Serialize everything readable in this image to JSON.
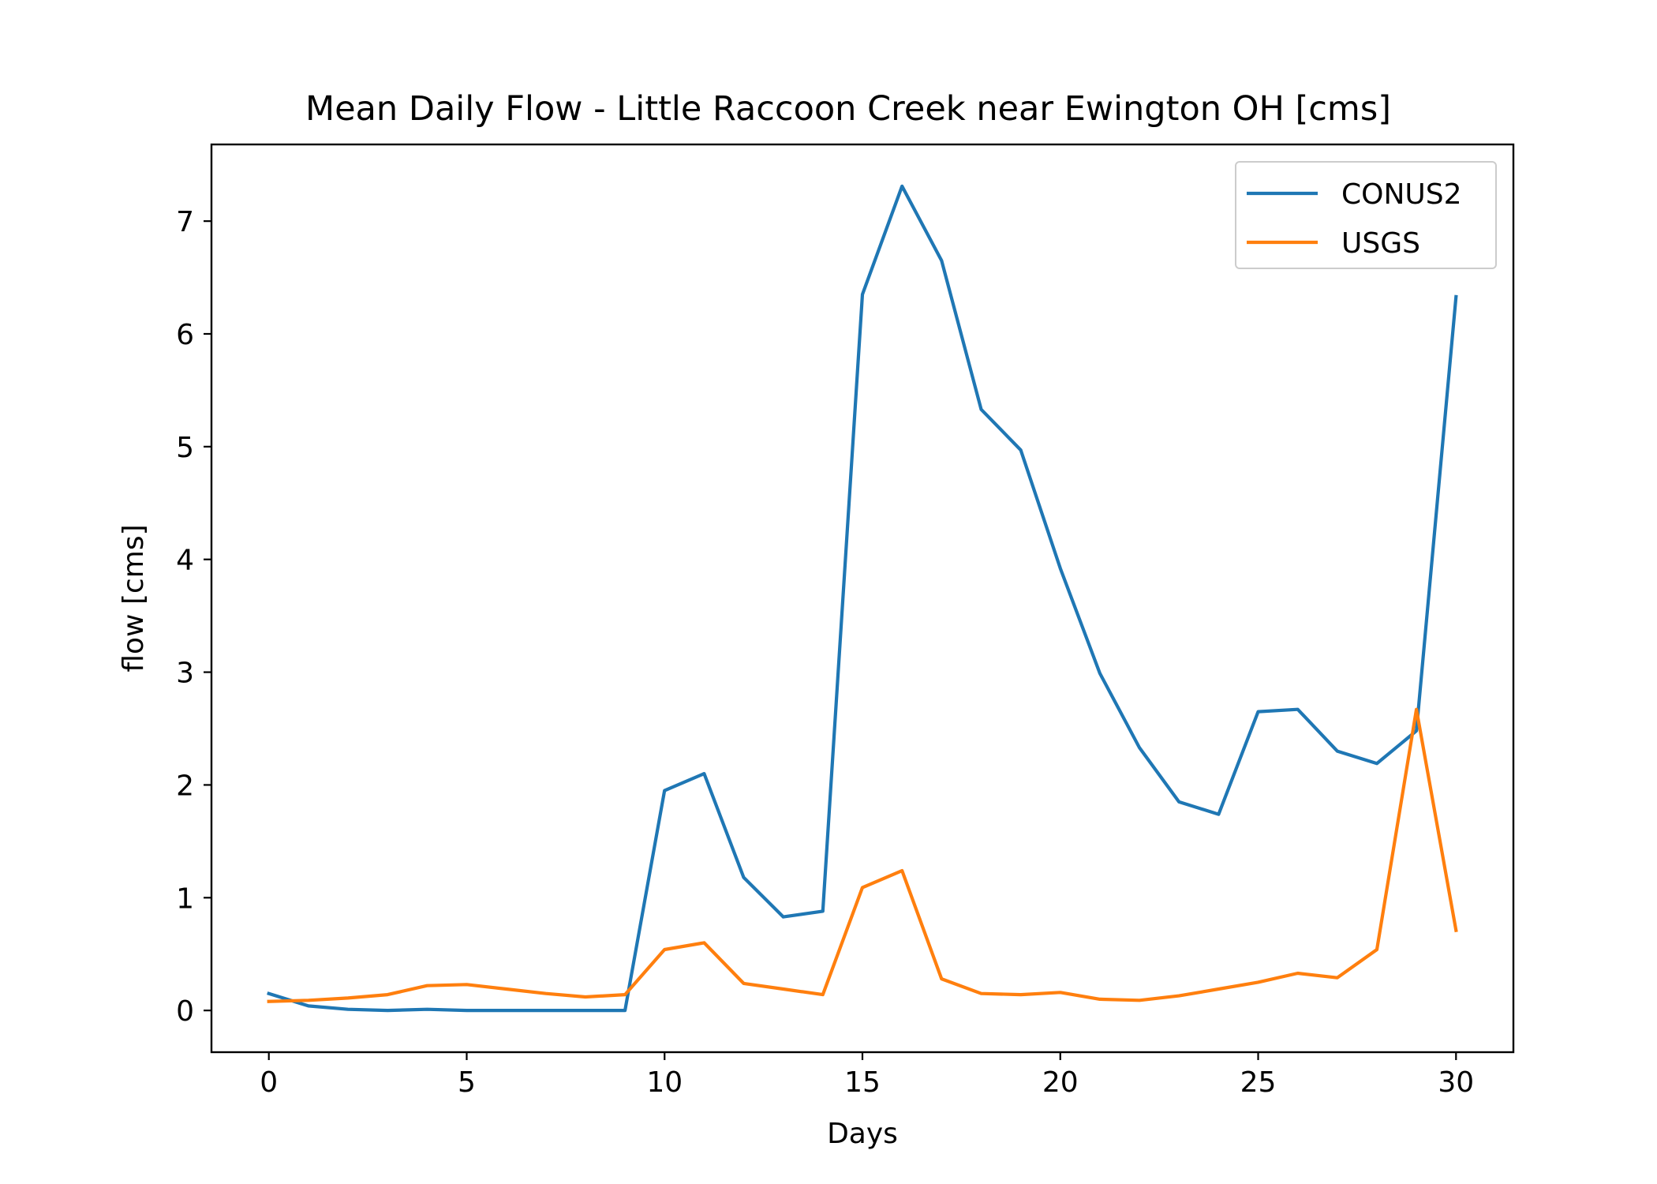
{
  "chart_data": {
    "type": "line",
    "title": "Mean Daily Flow - Little Raccoon Creek near Ewington OH [cms]",
    "xlabel": "Days",
    "ylabel": "flow [cms]",
    "xlim": [
      -1.45,
      31.45
    ],
    "ylim": [
      -0.37,
      7.68
    ],
    "xticks": [
      0,
      5,
      10,
      15,
      20,
      25,
      30
    ],
    "yticks": [
      0,
      1,
      2,
      3,
      4,
      5,
      6,
      7
    ],
    "xtick_labels": [
      "0",
      "5",
      "10",
      "15",
      "20",
      "25",
      "30"
    ],
    "ytick_labels": [
      "0",
      "1",
      "2",
      "3",
      "4",
      "5",
      "6",
      "7"
    ],
    "grid": false,
    "legend_position": "top-right",
    "x": [
      0,
      1,
      2,
      3,
      4,
      5,
      6,
      7,
      8,
      9,
      10,
      11,
      12,
      13,
      14,
      15,
      16,
      17,
      18,
      19,
      20,
      21,
      22,
      23,
      24,
      25,
      26,
      27,
      28,
      29,
      30
    ],
    "series": [
      {
        "name": "CONUS2",
        "color": "#1f77b4",
        "values": [
          0.15,
          0.04,
          0.01,
          0.0,
          0.01,
          0.0,
          0.0,
          0.0,
          0.0,
          0.0,
          1.95,
          2.1,
          1.18,
          0.83,
          0.88,
          6.35,
          7.31,
          6.65,
          5.33,
          4.97,
          3.92,
          2.99,
          2.33,
          1.85,
          1.74,
          2.65,
          2.67,
          2.3,
          2.19,
          2.48,
          6.33
        ]
      },
      {
        "name": "USGS",
        "color": "#ff7f0e",
        "values": [
          0.08,
          0.09,
          0.11,
          0.14,
          0.22,
          0.23,
          0.19,
          0.15,
          0.12,
          0.14,
          0.54,
          0.6,
          0.24,
          0.19,
          0.14,
          1.09,
          1.24,
          0.28,
          0.15,
          0.14,
          0.16,
          0.1,
          0.09,
          0.13,
          0.19,
          0.25,
          0.33,
          0.29,
          0.54,
          2.67,
          0.71
        ]
      }
    ]
  }
}
